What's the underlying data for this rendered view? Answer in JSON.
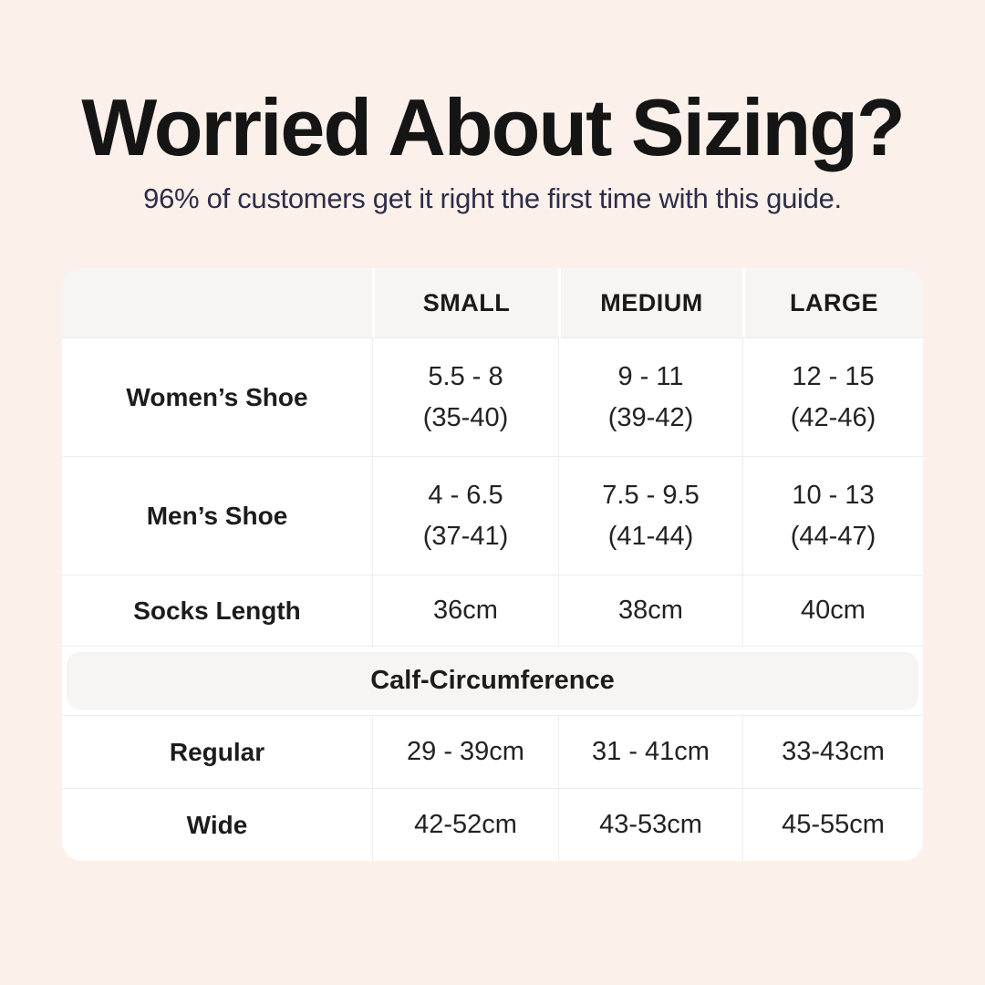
{
  "colors": {
    "background": "#fcf1ea",
    "title_text": "#151515",
    "subtitle_text": "#2d2d4a",
    "card_background": "#ffffff",
    "header_band_background": "#f6f5f3",
    "divider": "#ededed",
    "body_text": "#222222"
  },
  "chart_data": {
    "type": "table",
    "title": "Worried About Sizing?",
    "subtitle": "96% of customers get it right the first time with this guide.",
    "columns": [
      "",
      "SMALL",
      "MEDIUM",
      "LARGE"
    ],
    "shoe_size_rows": [
      {
        "label": "Women’s Shoe",
        "cells": [
          [
            "5.5 - 8",
            "(35-40)"
          ],
          [
            "9 - 11",
            "(39-42)"
          ],
          [
            "12 - 15",
            "(42-46)"
          ]
        ]
      },
      {
        "label": "Men’s Shoe",
        "cells": [
          [
            "4 - 6.5",
            "(37-41)"
          ],
          [
            "7.5 - 9.5",
            "(41-44)"
          ],
          [
            "10 - 13",
            "(44-47)"
          ]
        ]
      },
      {
        "label": "Socks Length",
        "cells": [
          [
            "36cm"
          ],
          [
            "38cm"
          ],
          [
            "40cm"
          ]
        ]
      }
    ],
    "section_header": "Calf-Circumference",
    "calf_rows": [
      {
        "label": "Regular",
        "cells": [
          [
            "29 - 39cm"
          ],
          [
            "31 - 41cm"
          ],
          [
            "33-43cm"
          ]
        ]
      },
      {
        "label": "Wide",
        "cells": [
          [
            "42-52cm"
          ],
          [
            "43-53cm"
          ],
          [
            "45-55cm"
          ]
        ]
      }
    ]
  }
}
